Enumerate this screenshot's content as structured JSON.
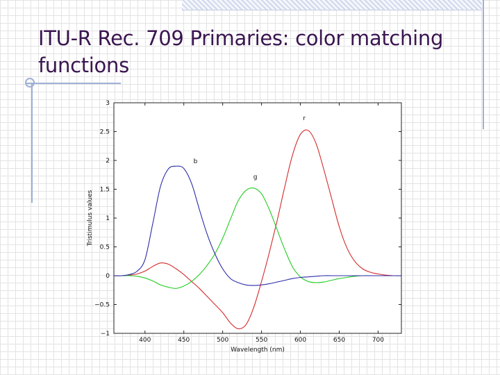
{
  "slide": {
    "title_line1": "ITU-R Rec. 709 Primaries: color matching",
    "title_line2": "functions",
    "colors": {
      "title": "#3a1550",
      "decor": "#9fb0d6"
    }
  },
  "chart_data": {
    "type": "line",
    "title": "",
    "xlabel": "Wavelength (nm)",
    "ylabel": "Tristimulus values",
    "xlim": [
      360,
      730
    ],
    "ylim": [
      -1,
      3
    ],
    "xticks": [
      400,
      450,
      500,
      550,
      600,
      650,
      700
    ],
    "yticks": [
      {
        "value": -1,
        "label": "−1"
      },
      {
        "value": -0.5,
        "label": "−0.5"
      },
      {
        "value": 0,
        "label": "0"
      },
      {
        "value": 0.5,
        "label": "0.5"
      },
      {
        "value": 1,
        "label": "1"
      },
      {
        "value": 1.5,
        "label": "1.5"
      },
      {
        "value": 2,
        "label": "2"
      },
      {
        "value": 2.5,
        "label": "2.5"
      },
      {
        "value": 3,
        "label": "3"
      }
    ],
    "grid": false,
    "x": [
      360,
      370,
      380,
      390,
      400,
      410,
      420,
      430,
      440,
      450,
      460,
      470,
      480,
      490,
      500,
      510,
      520,
      530,
      540,
      550,
      560,
      570,
      580,
      590,
      600,
      610,
      620,
      630,
      640,
      650,
      660,
      670,
      680,
      690,
      700,
      710,
      720,
      730
    ],
    "series": [
      {
        "name": "r",
        "color": "#d42a2a",
        "values": [
          0,
          0,
          0.01,
          0.03,
          0.08,
          0.16,
          0.22,
          0.2,
          0.12,
          0.02,
          -0.1,
          -0.22,
          -0.36,
          -0.5,
          -0.64,
          -0.82,
          -0.92,
          -0.85,
          -0.55,
          -0.1,
          0.4,
          0.95,
          1.55,
          2.1,
          2.45,
          2.52,
          2.3,
          1.85,
          1.35,
          0.85,
          0.48,
          0.25,
          0.12,
          0.06,
          0.03,
          0.01,
          0,
          0
        ]
      },
      {
        "name": "g",
        "color": "#22cc22",
        "values": [
          0,
          0,
          0,
          -0.01,
          -0.04,
          -0.09,
          -0.16,
          -0.2,
          -0.22,
          -0.18,
          -0.1,
          0.02,
          0.18,
          0.38,
          0.65,
          0.98,
          1.3,
          1.48,
          1.52,
          1.42,
          1.15,
          0.8,
          0.45,
          0.15,
          -0.02,
          -0.1,
          -0.12,
          -0.11,
          -0.08,
          -0.05,
          -0.03,
          -0.01,
          0,
          0,
          0,
          0,
          0,
          0
        ]
      },
      {
        "name": "b",
        "color": "#2b2ba8",
        "values": [
          0,
          0,
          0.02,
          0.08,
          0.28,
          0.9,
          1.55,
          1.85,
          1.9,
          1.86,
          1.6,
          1.15,
          0.72,
          0.38,
          0.12,
          -0.05,
          -0.12,
          -0.16,
          -0.17,
          -0.16,
          -0.14,
          -0.11,
          -0.08,
          -0.05,
          -0.03,
          -0.02,
          -0.01,
          0,
          0,
          0,
          0,
          0,
          0,
          0,
          0,
          0,
          0,
          0
        ]
      }
    ],
    "annotations": [
      {
        "text": "r",
        "x": 605,
        "y": 2.7
      },
      {
        "text": "g",
        "x": 542,
        "y": 1.68
      },
      {
        "text": "b",
        "x": 465,
        "y": 1.95
      }
    ],
    "colors": {
      "axis": "#222222",
      "tick_text": "#111111"
    }
  }
}
